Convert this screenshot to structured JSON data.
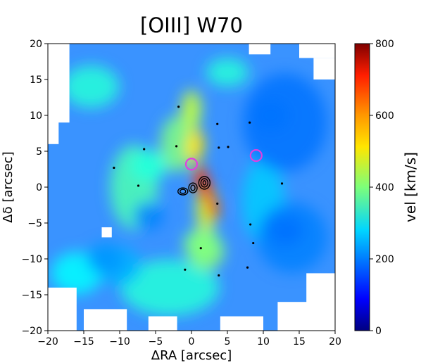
{
  "chart_data": {
    "type": "heatmap",
    "title": "[OIII] W70",
    "xlabel": "ΔRA [arcsec]",
    "ylabel": "Δδ [arcsec]",
    "xlim": [
      -20,
      20
    ],
    "ylim": [
      -20,
      20
    ],
    "xticks": [
      "−20",
      "−15",
      "−10",
      "−5",
      "0",
      "5",
      "10",
      "15",
      "20"
    ],
    "yticks": [
      "−20",
      "−15",
      "−10",
      "−5",
      "0",
      "5",
      "10",
      "15",
      "20"
    ],
    "colorbar": {
      "label": "vel [km/s]",
      "range": [
        0,
        800
      ],
      "ticks": [
        "0",
        "200",
        "400",
        "600",
        "800"
      ],
      "colormap": "jet"
    },
    "markers": [
      {
        "shape": "circle",
        "color": "#e040e0",
        "x": 0.0,
        "y": 3.2
      },
      {
        "shape": "circle",
        "color": "#e040e0",
        "x": 9.0,
        "y": 4.4
      }
    ],
    "map_features": [
      {
        "feature": "ridge",
        "x": 0.0,
        "y": 10.0,
        "value": 450
      },
      {
        "feature": "ridge",
        "x": 0.3,
        "y": 5.5,
        "value": 520
      },
      {
        "feature": "core",
        "x": 1.2,
        "y": 1.5,
        "value": 650
      },
      {
        "feature": "core",
        "x": 2.0,
        "y": -0.5,
        "value": 700
      },
      {
        "feature": "core",
        "x": 3.0,
        "y": -3.0,
        "value": 620
      },
      {
        "feature": "lobe",
        "x": 1.5,
        "y": -8.0,
        "value": 400
      },
      {
        "feature": "lobe",
        "x": -6.0,
        "y": 3.0,
        "value": 330
      },
      {
        "feature": "low",
        "x": 11.0,
        "y": 10.0,
        "value": 190
      },
      {
        "feature": "low",
        "x": 13.0,
        "y": -6.0,
        "value": 190
      },
      {
        "feature": "low",
        "x": -12.0,
        "y": -10.0,
        "value": 220
      }
    ]
  }
}
